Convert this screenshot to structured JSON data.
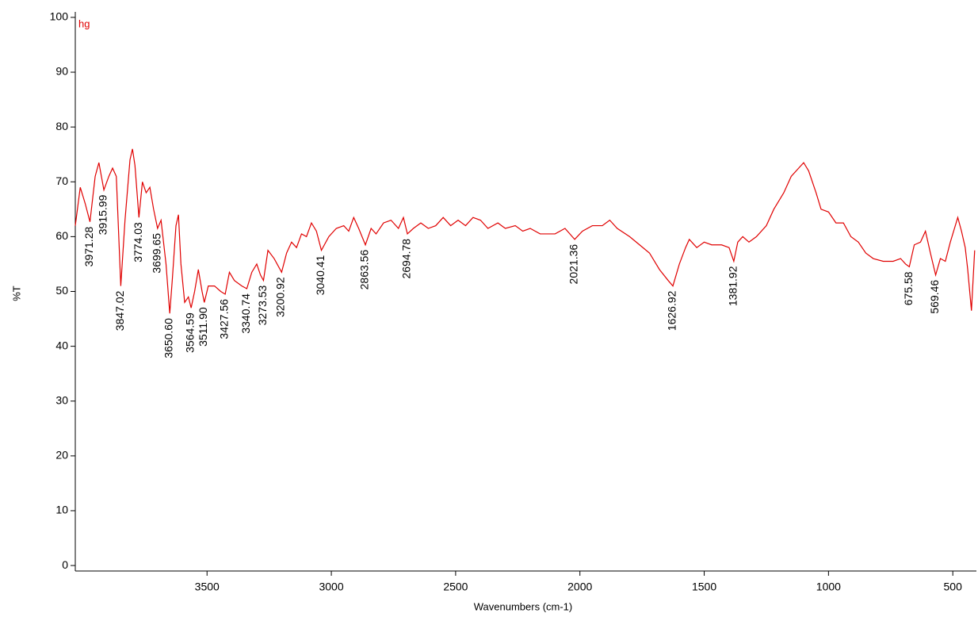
{
  "chart_data": {
    "type": "line",
    "xlabel": "Wavenumbers (cm-1)",
    "ylabel": "%T",
    "xlim": [
      4030,
      405
    ],
    "ylim": [
      -1,
      101
    ],
    "xticks": [
      3500,
      3000,
      2500,
      2000,
      1500,
      1000,
      500
    ],
    "yticks": [
      0,
      10,
      20,
      30,
      40,
      50,
      60,
      70,
      80,
      90,
      100
    ],
    "x": [
      4030,
      4010,
      3990,
      3971,
      3950,
      3935,
      3915,
      3895,
      3880,
      3865,
      3847,
      3830,
      3810,
      3800,
      3790,
      3774,
      3760,
      3745,
      3730,
      3715,
      3699,
      3685,
      3665,
      3650,
      3640,
      3625,
      3615,
      3605,
      3590,
      3575,
      3564,
      3550,
      3535,
      3520,
      3511,
      3495,
      3470,
      3445,
      3427,
      3410,
      3390,
      3360,
      3340,
      3320,
      3300,
      3285,
      3273,
      3255,
      3230,
      3200,
      3180,
      3160,
      3140,
      3120,
      3100,
      3080,
      3060,
      3040,
      3010,
      2980,
      2950,
      2930,
      2910,
      2890,
      2863,
      2840,
      2820,
      2790,
      2760,
      2730,
      2710,
      2694,
      2670,
      2640,
      2610,
      2580,
      2550,
      2520,
      2490,
      2460,
      2430,
      2400,
      2370,
      2330,
      2300,
      2260,
      2230,
      2200,
      2160,
      2100,
      2060,
      2021,
      1990,
      1950,
      1910,
      1880,
      1850,
      1800,
      1760,
      1720,
      1680,
      1645,
      1626,
      1600,
      1575,
      1560,
      1530,
      1500,
      1470,
      1430,
      1400,
      1381,
      1365,
      1345,
      1320,
      1290,
      1250,
      1220,
      1180,
      1150,
      1120,
      1100,
      1080,
      1050,
      1030,
      1000,
      970,
      940,
      910,
      880,
      850,
      820,
      780,
      740,
      710,
      690,
      675,
      655,
      630,
      610,
      590,
      569,
      550,
      530,
      510,
      490,
      480,
      465,
      450,
      440,
      425,
      412
    ],
    "series": [
      {
        "name": "hg",
        "color": "#e00000",
        "values": [
          62,
          69,
          66,
          62.7,
          71,
          73.5,
          68.5,
          71,
          72.5,
          71,
          51,
          63,
          74,
          76,
          73,
          63.5,
          70,
          68,
          69,
          65,
          61.5,
          63,
          55,
          46,
          52,
          62,
          64,
          55,
          48,
          49,
          47,
          50,
          54,
          50,
          48,
          51,
          51,
          50,
          49.5,
          53.5,
          52,
          51,
          50.5,
          53.5,
          55,
          53,
          52,
          57.5,
          56,
          53.5,
          57,
          59,
          58,
          60.5,
          60,
          62.5,
          61,
          57.5,
          60,
          61.5,
          62,
          61,
          63.5,
          61.5,
          58.5,
          61.5,
          60.5,
          62.5,
          63,
          61.5,
          63.5,
          60.5,
          61.5,
          62.5,
          61.5,
          62,
          63.5,
          62,
          63,
          62,
          63.5,
          63,
          61.5,
          62.5,
          61.5,
          62,
          61,
          61.5,
          60.5,
          60.5,
          61.5,
          59.5,
          61,
          62,
          62,
          63,
          61.5,
          60,
          58.5,
          57,
          54,
          52,
          51,
          55,
          58,
          59.5,
          58,
          59,
          58.5,
          58.5,
          58,
          55.5,
          59,
          60,
          59,
          60,
          62,
          65,
          68,
          71,
          72.5,
          73.5,
          72,
          68,
          65,
          64.5,
          62.5,
          62.5,
          60,
          59,
          57,
          56,
          55.5,
          55.5,
          56,
          55,
          54.5,
          58.5,
          59,
          61,
          57,
          53,
          56,
          55.5,
          59,
          62,
          63.5,
          61,
          58,
          54,
          46.5,
          57.5
        ]
      }
    ],
    "annotations": [
      {
        "x": 3971.28,
        "y": 62.7,
        "label": "3971.28"
      },
      {
        "x": 3915.99,
        "y": 68.5,
        "label": "3915.99"
      },
      {
        "x": 3847.02,
        "y": 51,
        "label": "3847.02"
      },
      {
        "x": 3774.03,
        "y": 63.5,
        "label": "3774.03"
      },
      {
        "x": 3699.65,
        "y": 61.5,
        "label": "3699.65"
      },
      {
        "x": 3650.6,
        "y": 46,
        "label": "3650.60"
      },
      {
        "x": 3564.59,
        "y": 47,
        "label": "3564.59"
      },
      {
        "x": 3511.9,
        "y": 48,
        "label": "3511.90"
      },
      {
        "x": 3427.56,
        "y": 49.5,
        "label": "3427.56"
      },
      {
        "x": 3340.74,
        "y": 50.5,
        "label": "3340.74"
      },
      {
        "x": 3273.53,
        "y": 52,
        "label": "3273.53"
      },
      {
        "x": 3200.92,
        "y": 53.5,
        "label": "3200.92"
      },
      {
        "x": 3040.41,
        "y": 57.5,
        "label": "3040.41"
      },
      {
        "x": 2863.56,
        "y": 58.5,
        "label": "2863.56"
      },
      {
        "x": 2694.78,
        "y": 60.5,
        "label": "2694.78"
      },
      {
        "x": 2021.36,
        "y": 59.5,
        "label": "2021.36"
      },
      {
        "x": 1626.92,
        "y": 51,
        "label": "1626.92"
      },
      {
        "x": 1381.92,
        "y": 55.5,
        "label": "1381.92"
      },
      {
        "x": 675.58,
        "y": 54.5,
        "label": "675.58"
      },
      {
        "x": 569.46,
        "y": 53,
        "label": "569.46"
      }
    ]
  }
}
